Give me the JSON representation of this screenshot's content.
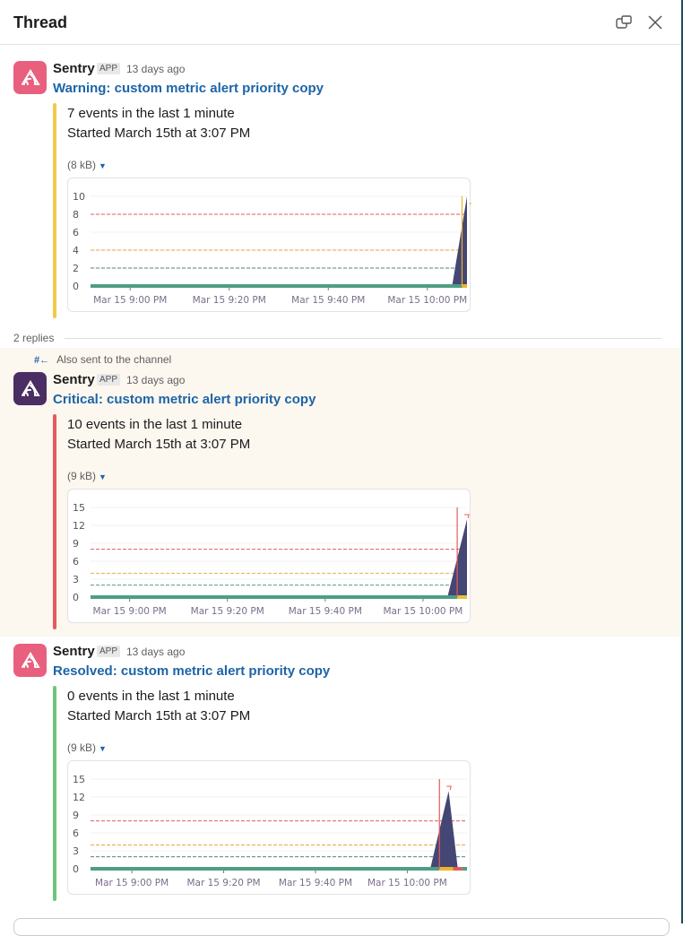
{
  "header": {
    "title": "Thread",
    "icons": [
      "popout-icon",
      "close-icon"
    ]
  },
  "colors": {
    "link": "#1d64a8",
    "warning": "#f2c94c",
    "critical": "#e45b5b",
    "resolved": "#6cc77a",
    "area": "#444674",
    "baseline": "#4e9e83",
    "highlight_bg": "#fcf7ef"
  },
  "replies_label": "2 replies",
  "also_sent": "Also sent to the channel",
  "messages": [
    {
      "sender": "Sentry",
      "badge": "APP",
      "time": "13 days ago",
      "title": "Warning: custom metric alert priority copy",
      "line1": "7 events in the last 1 minute",
      "line2": "Started March 15th at 3:07 PM",
      "size": "(8 kB)",
      "bar_color": "#f2c94c",
      "avatar_color": "#e8607e"
    },
    {
      "sender": "Sentry",
      "badge": "APP",
      "time": "13 days ago",
      "title": "Critical: custom metric alert priority copy",
      "line1": "10 events in the last 1 minute",
      "line2": "Started March 15th at 3:07 PM",
      "size": "(9 kB)",
      "bar_color": "#e45b5b",
      "avatar_color": "#4a2d63"
    },
    {
      "sender": "Sentry",
      "badge": "APP",
      "time": "13 days ago",
      "title": "Resolved: custom metric alert priority copy",
      "line1": "0 events in the last 1 minute",
      "line2": "Started March 15th at 3:07 PM",
      "size": "(9 kB)",
      "bar_color": "#6cc77a",
      "avatar_color": "#e8607e"
    }
  ],
  "chart_data": [
    {
      "type": "area",
      "ylim": [
        0,
        10
      ],
      "yticks": [
        "0",
        "2",
        "4",
        "6",
        "8",
        "10"
      ],
      "xlim": [
        "20:52",
        "22:08"
      ],
      "xticks": [
        {
          "t": "21:00",
          "label": "Mar 15 9:00 PM"
        },
        {
          "t": "21:20",
          "label": "Mar 15 9:20 PM"
        },
        {
          "t": "21:40",
          "label": "Mar 15 9:40 PM"
        },
        {
          "t": "22:00",
          "label": "Mar 15 10:00 PM"
        }
      ],
      "thresholds": [
        {
          "value": 8,
          "color": "#e45b5b"
        },
        {
          "value": 4,
          "color": "#e8a33b"
        },
        {
          "value": 2,
          "color": "#4e8a7a"
        }
      ],
      "series": [
        {
          "x": [
            "22:05",
            "22:08"
          ],
          "y": [
            0,
            10
          ]
        }
      ],
      "marker": {
        "t": "22:07",
        "color": "#f0b429"
      },
      "status": [
        {
          "from": "20:52",
          "to": "22:07",
          "color": "#4e9e83"
        },
        {
          "from": "22:07",
          "to": "22:08",
          "color": "#f0b429"
        }
      ]
    },
    {
      "type": "area",
      "ylim": [
        0,
        15
      ],
      "yticks": [
        "0",
        "3",
        "6",
        "9",
        "12",
        "15"
      ],
      "xlim": [
        "20:52",
        "22:09"
      ],
      "xticks": [
        {
          "t": "21:00",
          "label": "Mar 15 9:00 PM"
        },
        {
          "t": "21:20",
          "label": "Mar 15 9:20 PM"
        },
        {
          "t": "21:40",
          "label": "Mar 15 9:40 PM"
        },
        {
          "t": "22:00",
          "label": "Mar 15 10:00 PM"
        }
      ],
      "thresholds": [
        {
          "value": 8,
          "color": "#e45b5b"
        },
        {
          "value": 4,
          "color": "#e8b04a"
        },
        {
          "value": 2,
          "color": "#4e9e83"
        }
      ],
      "series": [
        {
          "x": [
            "22:05",
            "22:09"
          ],
          "y": [
            0,
            13
          ]
        }
      ],
      "marker": {
        "t": "22:07",
        "color": "#e45b5b"
      },
      "status": [
        {
          "from": "20:52",
          "to": "22:07",
          "color": "#4e9e83"
        },
        {
          "from": "22:07",
          "to": "22:09",
          "color": "#e8c23b"
        }
      ]
    },
    {
      "type": "area",
      "ylim": [
        0,
        15
      ],
      "yticks": [
        "0",
        "3",
        "6",
        "9",
        "12",
        "15"
      ],
      "xlim": [
        "20:51",
        "22:13"
      ],
      "xticks": [
        {
          "t": "21:00",
          "label": "Mar 15 9:00 PM"
        },
        {
          "t": "21:20",
          "label": "Mar 15 9:20 PM"
        },
        {
          "t": "21:40",
          "label": "Mar 15 9:40 PM"
        },
        {
          "t": "22:00",
          "label": "Mar 15 10:00 PM"
        }
      ],
      "thresholds": [
        {
          "value": 8,
          "color": "#e45b5b"
        },
        {
          "value": 4,
          "color": "#e8a33b"
        },
        {
          "value": 2,
          "color": "#4e8a7a"
        }
      ],
      "series": [
        {
          "x": [
            "22:05",
            "22:09",
            "22:11"
          ],
          "y": [
            0,
            13,
            0
          ]
        }
      ],
      "marker": {
        "t": "22:07",
        "color": "#e45b5b"
      },
      "status": [
        {
          "from": "20:51",
          "to": "22:07",
          "color": "#4e9e83"
        },
        {
          "from": "22:07",
          "to": "22:10",
          "color": "#f0b429"
        },
        {
          "from": "22:10",
          "to": "22:12",
          "color": "#e45b5b"
        },
        {
          "from": "22:12",
          "to": "22:13",
          "color": "#4e9e83"
        }
      ]
    }
  ]
}
